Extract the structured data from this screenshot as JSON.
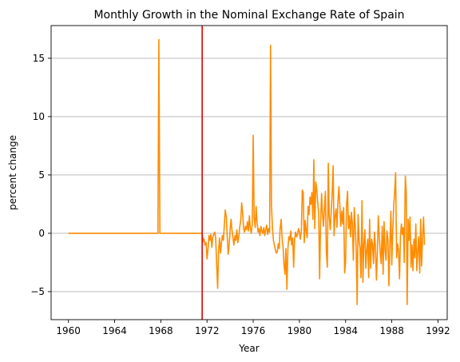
{
  "chart_data": {
    "type": "line",
    "title": "Monthly Growth in the Nominal Exchange Rate of Spain",
    "xlabel": "Year",
    "ylabel": "percent change",
    "xlim": [
      1958.5,
      1992.8
    ],
    "ylim": [
      -7.4,
      17.8
    ],
    "xticks": [
      1960,
      1964,
      1968,
      1972,
      1976,
      1980,
      1984,
      1988,
      1992
    ],
    "yticks": [
      -5,
      0,
      5,
      10,
      15
    ],
    "grid": "y",
    "vline": {
      "x": 1971.58,
      "color": "#e00000"
    },
    "series": [
      {
        "color": "#ff8c00",
        "points": [
          [
            1960.0,
            0
          ],
          [
            1967.75,
            0
          ],
          [
            1967.83,
            16.6
          ],
          [
            1967.92,
            0
          ],
          [
            1971.42,
            0
          ],
          [
            1971.58,
            0
          ],
          [
            1971.67,
            -0.7
          ],
          [
            1971.75,
            -0.5
          ],
          [
            1971.83,
            -1.0
          ],
          [
            1971.92,
            -0.8
          ],
          [
            1972.0,
            -2.2
          ],
          [
            1972.08,
            -1.4
          ],
          [
            1972.17,
            -0.2
          ],
          [
            1972.25,
            -0.6
          ],
          [
            1972.33,
            -0.1
          ],
          [
            1972.42,
            -1.2
          ],
          [
            1972.5,
            -0.3
          ],
          [
            1972.58,
            -0.1
          ],
          [
            1972.67,
            0.1
          ],
          [
            1972.75,
            -0.4
          ],
          [
            1972.83,
            -2.5
          ],
          [
            1972.92,
            -4.7
          ],
          [
            1973.0,
            -1.6
          ],
          [
            1973.08,
            -0.4
          ],
          [
            1973.17,
            -1.7
          ],
          [
            1973.25,
            -0.8
          ],
          [
            1973.33,
            -0.2
          ],
          [
            1973.42,
            -0.6
          ],
          [
            1973.5,
            0.7
          ],
          [
            1973.58,
            2.0
          ],
          [
            1973.67,
            1.4
          ],
          [
            1973.75,
            -0.2
          ],
          [
            1973.83,
            -1.8
          ],
          [
            1973.92,
            -1.0
          ],
          [
            1974.0,
            0.3
          ],
          [
            1974.08,
            1.2
          ],
          [
            1974.17,
            0.2
          ],
          [
            1974.25,
            -0.4
          ],
          [
            1974.33,
            -1.0
          ],
          [
            1974.42,
            -0.2
          ],
          [
            1974.5,
            -0.6
          ],
          [
            1974.58,
            0.3
          ],
          [
            1974.67,
            -0.8
          ],
          [
            1974.75,
            -0.3
          ],
          [
            1974.83,
            0.5
          ],
          [
            1974.92,
            1.1
          ],
          [
            1975.0,
            2.6
          ],
          [
            1975.08,
            1.8
          ],
          [
            1975.17,
            0.4
          ],
          [
            1975.25,
            0.1
          ],
          [
            1975.33,
            0.6
          ],
          [
            1975.42,
            0.3
          ],
          [
            1975.5,
            1.0
          ],
          [
            1975.58,
            0.2
          ],
          [
            1975.67,
            1.5
          ],
          [
            1975.75,
            0.4
          ],
          [
            1975.83,
            0.0
          ],
          [
            1975.92,
            0.8
          ],
          [
            1976.0,
            8.4
          ],
          [
            1976.08,
            1.4
          ],
          [
            1976.17,
            0.5
          ],
          [
            1976.25,
            2.3
          ],
          [
            1976.33,
            1.0
          ],
          [
            1976.42,
            0.1
          ],
          [
            1976.5,
            0.4
          ],
          [
            1976.58,
            -0.2
          ],
          [
            1976.67,
            0.6
          ],
          [
            1976.75,
            0.2
          ],
          [
            1976.83,
            0.0
          ],
          [
            1976.92,
            0.5
          ],
          [
            1977.0,
            -0.2
          ],
          [
            1977.08,
            0.3
          ],
          [
            1977.17,
            0.7
          ],
          [
            1977.25,
            -0.1
          ],
          [
            1977.33,
            0.4
          ],
          [
            1977.42,
            0.1
          ],
          [
            1977.5,
            16.1
          ],
          [
            1977.58,
            2.4
          ],
          [
            1977.67,
            0.4
          ],
          [
            1977.75,
            -0.6
          ],
          [
            1977.83,
            -1.0
          ],
          [
            1977.92,
            -1.4
          ],
          [
            1978.0,
            -1.7
          ],
          [
            1978.08,
            -1.6
          ],
          [
            1978.17,
            -0.9
          ],
          [
            1978.25,
            -1.3
          ],
          [
            1978.33,
            0.4
          ],
          [
            1978.42,
            1.2
          ],
          [
            1978.5,
            -0.4
          ],
          [
            1978.58,
            -1.1
          ],
          [
            1978.67,
            -2.7
          ],
          [
            1978.75,
            -3.5
          ],
          [
            1978.83,
            -1.3
          ],
          [
            1978.92,
            -4.8
          ],
          [
            1979.0,
            -1.4
          ],
          [
            1979.08,
            -0.3
          ],
          [
            1979.17,
            -0.6
          ],
          [
            1979.25,
            0.2
          ],
          [
            1979.33,
            -1.0
          ],
          [
            1979.42,
            -0.4
          ],
          [
            1979.5,
            -2.9
          ],
          [
            1979.58,
            -0.6
          ],
          [
            1979.67,
            0.1
          ],
          [
            1979.75,
            -0.3
          ],
          [
            1979.83,
            -0.1
          ],
          [
            1979.92,
            0.4
          ],
          [
            1980.0,
            0.1
          ],
          [
            1980.08,
            -0.5
          ],
          [
            1980.17,
            0.2
          ],
          [
            1980.25,
            3.7
          ],
          [
            1980.33,
            3.5
          ],
          [
            1980.42,
            -0.8
          ],
          [
            1980.5,
            1.1
          ],
          [
            1980.58,
            0.3
          ],
          [
            1980.67,
            -0.4
          ],
          [
            1980.75,
            2.3
          ],
          [
            1980.83,
            1.6
          ],
          [
            1980.92,
            3.1
          ],
          [
            1981.0,
            2.5
          ],
          [
            1981.08,
            3.5
          ],
          [
            1981.17,
            1.2
          ],
          [
            1981.25,
            6.3
          ],
          [
            1981.33,
            0.4
          ],
          [
            1981.42,
            4.4
          ],
          [
            1981.5,
            3.8
          ],
          [
            1981.58,
            2.7
          ],
          [
            1981.67,
            1.7
          ],
          [
            1981.75,
            -3.9
          ],
          [
            1981.83,
            0.7
          ],
          [
            1981.92,
            3.4
          ],
          [
            1982.0,
            1.6
          ],
          [
            1982.08,
            0.6
          ],
          [
            1982.17,
            2.2
          ],
          [
            1982.25,
            3.6
          ],
          [
            1982.33,
            -1.6
          ],
          [
            1982.42,
            -2.9
          ],
          [
            1982.5,
            6.0
          ],
          [
            1982.58,
            1.5
          ],
          [
            1982.67,
            0.3
          ],
          [
            1982.75,
            1.8
          ],
          [
            1982.83,
            3.2
          ],
          [
            1982.92,
            5.8
          ],
          [
            1983.0,
            -0.2
          ],
          [
            1983.08,
            1.4
          ],
          [
            1983.17,
            2.1
          ],
          [
            1983.25,
            0.5
          ],
          [
            1983.33,
            2.6
          ],
          [
            1983.42,
            4.0
          ],
          [
            1983.5,
            2.4
          ],
          [
            1983.58,
            0.6
          ],
          [
            1983.67,
            1.9
          ],
          [
            1983.75,
            0.8
          ],
          [
            1983.83,
            2.2
          ],
          [
            1983.92,
            -3.4
          ],
          [
            1984.0,
            -2.4
          ],
          [
            1984.08,
            2.4
          ],
          [
            1984.17,
            3.6
          ],
          [
            1984.25,
            0.4
          ],
          [
            1984.33,
            1.5
          ],
          [
            1984.42,
            -0.3
          ],
          [
            1984.5,
            1.8
          ],
          [
            1984.58,
            0.9
          ],
          [
            1984.67,
            -2.3
          ],
          [
            1984.75,
            2.2
          ],
          [
            1984.83,
            0.7
          ],
          [
            1984.92,
            -1.5
          ],
          [
            1985.0,
            -6.1
          ],
          [
            1985.08,
            1.6
          ],
          [
            1985.17,
            -0.6
          ],
          [
            1985.25,
            -1.3
          ],
          [
            1985.33,
            -3.8
          ],
          [
            1985.42,
            2.8
          ],
          [
            1985.5,
            -4.2
          ],
          [
            1985.58,
            -1.0
          ],
          [
            1985.67,
            0.3
          ],
          [
            1985.75,
            -3.0
          ],
          [
            1985.83,
            -1.5
          ],
          [
            1985.92,
            -0.5
          ],
          [
            1986.0,
            -3.8
          ],
          [
            1986.08,
            1.2
          ],
          [
            1986.17,
            -3.0
          ],
          [
            1986.25,
            -0.5
          ],
          [
            1986.33,
            -0.9
          ],
          [
            1986.42,
            -2.6
          ],
          [
            1986.5,
            0.1
          ],
          [
            1986.58,
            -1.1
          ],
          [
            1986.67,
            -4.0
          ],
          [
            1986.75,
            -1.7
          ],
          [
            1986.83,
            1.5
          ],
          [
            1986.92,
            -0.3
          ],
          [
            1987.0,
            -1.7
          ],
          [
            1987.08,
            -2.6
          ],
          [
            1987.17,
            0.6
          ],
          [
            1987.25,
            -3.5
          ],
          [
            1987.33,
            1.0
          ],
          [
            1987.42,
            -1.5
          ],
          [
            1987.5,
            -2.3
          ],
          [
            1987.58,
            0.2
          ],
          [
            1987.67,
            -0.6
          ],
          [
            1987.75,
            -4.5
          ],
          [
            1987.83,
            -1.2
          ],
          [
            1987.92,
            1.9
          ],
          [
            1988.0,
            -2.7
          ],
          [
            1988.08,
            0.2
          ],
          [
            1988.17,
            2.4
          ],
          [
            1988.25,
            3.6
          ],
          [
            1988.33,
            5.2
          ],
          [
            1988.42,
            -2.1
          ],
          [
            1988.5,
            -0.9
          ],
          [
            1988.58,
            -1.4
          ],
          [
            1988.67,
            -3.9
          ],
          [
            1988.75,
            -0.3
          ],
          [
            1988.83,
            0.8
          ],
          [
            1988.92,
            -0.1
          ],
          [
            1989.0,
            0.5
          ],
          [
            1989.08,
            -2.5
          ],
          [
            1989.17,
            4.9
          ],
          [
            1989.25,
            3.6
          ],
          [
            1989.33,
            -6.1
          ],
          [
            1989.42,
            1.2
          ],
          [
            1989.5,
            -0.6
          ],
          [
            1989.58,
            1.4
          ],
          [
            1989.67,
            -2.9
          ],
          [
            1989.75,
            -1.0
          ],
          [
            1989.83,
            -3.2
          ],
          [
            1989.92,
            -0.5
          ],
          [
            1990.0,
            -2.1
          ],
          [
            1990.08,
            0.8
          ],
          [
            1990.17,
            -3.2
          ],
          [
            1990.25,
            -1.6
          ],
          [
            1990.33,
            -0.3
          ],
          [
            1990.42,
            -3.4
          ],
          [
            1990.5,
            1.2
          ],
          [
            1990.58,
            -2.8
          ],
          [
            1990.67,
            -0.2
          ],
          [
            1990.75,
            1.4
          ],
          [
            1990.83,
            -1.0
          ]
        ]
      }
    ]
  }
}
